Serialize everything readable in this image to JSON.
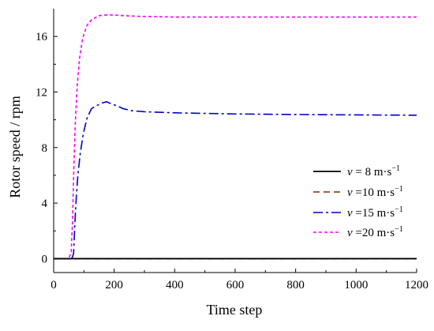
{
  "chart_data": {
    "type": "line",
    "title": "",
    "xlabel": "Time step",
    "ylabel": "Rotor speed / rpm",
    "xlim": [
      0,
      1200
    ],
    "ylim": [
      -1,
      18
    ],
    "x_ticks": [
      0,
      200,
      400,
      600,
      800,
      1000,
      1200
    ],
    "y_ticks": [
      0,
      4,
      8,
      12,
      16
    ],
    "grid": false,
    "legend_position": "center-right",
    "series": [
      {
        "name": "v = 8 m·s⁻¹",
        "legend_var": "v",
        "legend_rest": " = 8 m·s",
        "legend_sup": "−1",
        "color": "#000000",
        "dash": "solid",
        "points": [
          [
            0,
            0
          ],
          [
            1200,
            0
          ]
        ]
      },
      {
        "name": "v =10 m·s⁻¹",
        "legend_var": "v",
        "legend_rest": " =10 m·s",
        "legend_sup": "−1",
        "color": "#8b2500",
        "dash": "dash",
        "points": [
          [
            0,
            0
          ],
          [
            1200,
            0
          ]
        ]
      },
      {
        "name": "v =15 m·s⁻¹",
        "legend_var": "v",
        "legend_rest": " =15 m·s",
        "legend_sup": "−1",
        "color": "#0000cc",
        "dash": "dashdot",
        "points": [
          [
            0,
            0
          ],
          [
            55,
            0
          ],
          [
            62,
            0.1
          ],
          [
            66,
            0.4
          ],
          [
            70,
            2.5
          ],
          [
            75,
            4.5
          ],
          [
            80,
            6.0
          ],
          [
            88,
            7.6
          ],
          [
            98,
            9.0
          ],
          [
            110,
            10.1
          ],
          [
            125,
            10.8
          ],
          [
            140,
            11.0
          ],
          [
            160,
            11.2
          ],
          [
            175,
            11.3
          ],
          [
            190,
            11.15
          ],
          [
            210,
            11.0
          ],
          [
            230,
            10.8
          ],
          [
            260,
            10.65
          ],
          [
            300,
            10.58
          ],
          [
            400,
            10.5
          ],
          [
            600,
            10.42
          ],
          [
            800,
            10.38
          ],
          [
            1000,
            10.35
          ],
          [
            1200,
            10.33
          ]
        ]
      },
      {
        "name": "v =20 m·s⁻¹",
        "legend_var": "v",
        "legend_rest": " =20 m·s",
        "legend_sup": "−1",
        "color": "#ff00ff",
        "dash": "dot",
        "points": [
          [
            0,
            0
          ],
          [
            50,
            0
          ],
          [
            58,
            0.5
          ],
          [
            62,
            2.5
          ],
          [
            65,
            5.0
          ],
          [
            68,
            7.5
          ],
          [
            72,
            10.0
          ],
          [
            78,
            12.5
          ],
          [
            86,
            14.5
          ],
          [
            96,
            15.9
          ],
          [
            110,
            16.8
          ],
          [
            125,
            17.2
          ],
          [
            150,
            17.5
          ],
          [
            175,
            17.55
          ],
          [
            200,
            17.55
          ],
          [
            230,
            17.5
          ],
          [
            280,
            17.45
          ],
          [
            400,
            17.4
          ],
          [
            600,
            17.4
          ],
          [
            800,
            17.4
          ],
          [
            1000,
            17.4
          ],
          [
            1200,
            17.4
          ]
        ]
      }
    ]
  }
}
